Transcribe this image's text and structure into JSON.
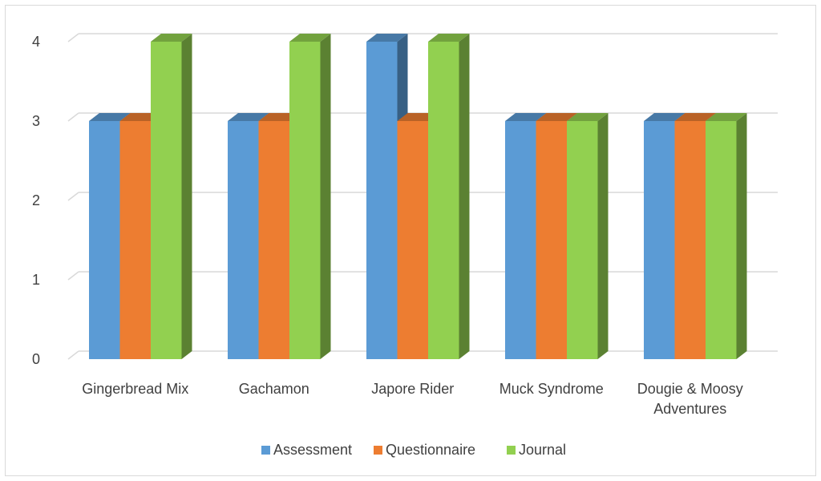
{
  "chart_data": {
    "type": "bar",
    "categories": [
      [
        "Gingerbread Mix"
      ],
      [
        "Gachamon"
      ],
      [
        "Japore Rider"
      ],
      [
        "Muck Syndrome"
      ],
      [
        "Dougie & Moosy",
        "Adventures"
      ]
    ],
    "series": [
      {
        "name": "Assessment",
        "values": [
          3,
          3,
          4,
          3,
          3
        ]
      },
      {
        "name": "Questionnaire",
        "values": [
          3,
          3,
          3,
          3,
          3
        ]
      },
      {
        "name": "Journal",
        "values": [
          4,
          4,
          4,
          3,
          3
        ]
      }
    ],
    "yticks": [
      0,
      1,
      2,
      3,
      4
    ],
    "ylim": [
      0,
      4
    ],
    "grid": true,
    "legend": "bottom",
    "style": "3d-clustered-column"
  },
  "colors": {
    "Assessment": "#5b9bd5",
    "Questionnaire": "#ed7d31",
    "Journal": "#92d050",
    "gridline": "#d9d9d9",
    "text": "#404040"
  }
}
